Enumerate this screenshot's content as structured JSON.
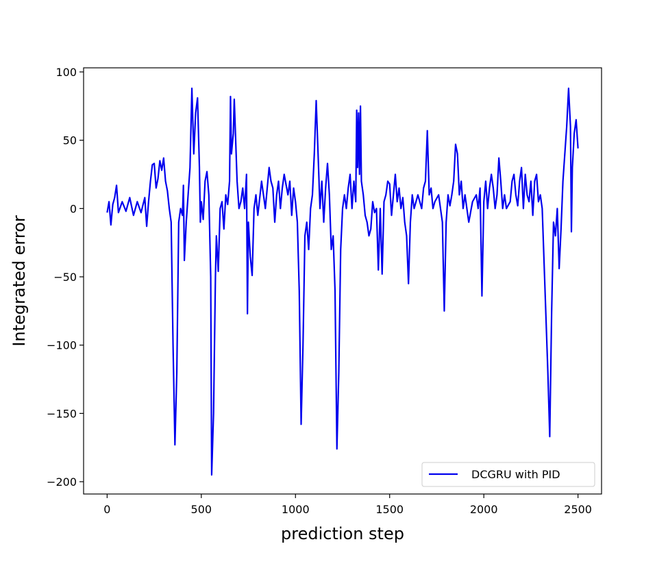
{
  "chart_data": {
    "type": "line",
    "xlabel": "prediction step",
    "ylabel": "Integrated error",
    "x": [
      0,
      10,
      20,
      30,
      40,
      50,
      60,
      80,
      100,
      120,
      140,
      160,
      180,
      200,
      210,
      220,
      230,
      240,
      250,
      260,
      270,
      280,
      290,
      300,
      310,
      320,
      330,
      340,
      350,
      360,
      370,
      380,
      390,
      400,
      405,
      410,
      420,
      440,
      450,
      460,
      470,
      480,
      490,
      495,
      500,
      510,
      520,
      530,
      540,
      550,
      555,
      565,
      575,
      580,
      590,
      600,
      610,
      620,
      630,
      640,
      650,
      655,
      660,
      670,
      675,
      680,
      690,
      700,
      710,
      720,
      730,
      740,
      745,
      750,
      760,
      770,
      780,
      790,
      800,
      820,
      840,
      850,
      860,
      870,
      880,
      890,
      900,
      910,
      920,
      930,
      940,
      960,
      970,
      980,
      990,
      1000,
      1010,
      1020,
      1030,
      1040,
      1050,
      1060,
      1070,
      1080,
      1090,
      1100,
      1110,
      1120,
      1130,
      1140,
      1150,
      1160,
      1170,
      1180,
      1190,
      1200,
      1210,
      1220,
      1230,
      1240,
      1250,
      1260,
      1270,
      1280,
      1290,
      1300,
      1310,
      1320,
      1325,
      1330,
      1335,
      1340,
      1345,
      1350,
      1360,
      1370,
      1380,
      1390,
      1400,
      1410,
      1420,
      1430,
      1440,
      1450,
      1460,
      1470,
      1480,
      1490,
      1500,
      1510,
      1520,
      1530,
      1540,
      1550,
      1560,
      1570,
      1580,
      1590,
      1600,
      1610,
      1620,
      1630,
      1650,
      1670,
      1680,
      1690,
      1700,
      1710,
      1720,
      1730,
      1740,
      1760,
      1770,
      1780,
      1790,
      1800,
      1810,
      1820,
      1830,
      1840,
      1850,
      1860,
      1870,
      1880,
      1890,
      1900,
      1910,
      1920,
      1940,
      1960,
      1970,
      1980,
      1990,
      2000,
      2010,
      2020,
      2030,
      2040,
      2050,
      2060,
      2070,
      2080,
      2090,
      2100,
      2110,
      2120,
      2140,
      2150,
      2160,
      2170,
      2180,
      2190,
      2200,
      2210,
      2220,
      2230,
      2240,
      2250,
      2260,
      2270,
      2280,
      2290,
      2300,
      2310,
      2320,
      2330,
      2340,
      2350,
      2360,
      2370,
      2380,
      2390,
      2400,
      2410,
      2420,
      2430,
      2440,
      2450,
      2460,
      2465,
      2470,
      2480,
      2490,
      2500
    ],
    "series": [
      {
        "name": "DCGRU with PID",
        "color": "#0000ee",
        "values": [
          -3,
          5,
          -12,
          3,
          8,
          17,
          -3,
          5,
          -2,
          8,
          -5,
          5,
          -3,
          8,
          -13,
          5,
          20,
          32,
          33,
          15,
          22,
          35,
          28,
          37,
          20,
          13,
          0,
          -10,
          -100,
          -173,
          -120,
          -10,
          0,
          -5,
          17,
          -38,
          -10,
          30,
          88,
          40,
          70,
          81,
          30,
          -10,
          5,
          -8,
          20,
          27,
          10,
          -50,
          -195,
          -150,
          -50,
          -20,
          -46,
          0,
          5,
          -15,
          10,
          3,
          20,
          82,
          40,
          55,
          80,
          60,
          20,
          0,
          5,
          15,
          0,
          25,
          -77,
          -10,
          -35,
          -49,
          0,
          10,
          -5,
          20,
          0,
          15,
          30,
          20,
          15,
          -10,
          10,
          20,
          0,
          15,
          25,
          10,
          20,
          -5,
          15,
          5,
          -10,
          -60,
          -158,
          -100,
          -20,
          -10,
          -30,
          0,
          10,
          40,
          79,
          40,
          0,
          20,
          -10,
          15,
          33,
          10,
          -30,
          -20,
          -60,
          -176,
          -120,
          -30,
          0,
          10,
          0,
          15,
          25,
          0,
          20,
          5,
          72,
          30,
          70,
          25,
          75,
          20,
          10,
          -5,
          -10,
          -20,
          -15,
          5,
          -3,
          0,
          -45,
          0,
          -48,
          5,
          10,
          20,
          18,
          -5,
          10,
          25,
          5,
          15,
          0,
          8,
          -10,
          -20,
          -55,
          -10,
          10,
          0,
          10,
          0,
          15,
          20,
          57,
          10,
          15,
          0,
          5,
          10,
          0,
          -10,
          -75,
          -10,
          10,
          2,
          10,
          20,
          47,
          40,
          10,
          20,
          0,
          10,
          0,
          -10,
          5,
          10,
          0,
          15,
          -64,
          5,
          20,
          0,
          15,
          25,
          15,
          0,
          10,
          37,
          20,
          0,
          10,
          0,
          5,
          20,
          25,
          10,
          2,
          20,
          30,
          0,
          25,
          10,
          5,
          20,
          -5,
          20,
          25,
          5,
          10,
          0,
          -40,
          -80,
          -120,
          -167,
          -76,
          -10,
          -20,
          0,
          -44,
          -15,
          20,
          40,
          60,
          88,
          60,
          -17,
          30,
          55,
          65,
          44
        ]
      }
    ],
    "xlim": [
      -125,
      2625
    ],
    "xticks": [
      0,
      500,
      1000,
      1500,
      2000,
      2500
    ],
    "ylim": [
      -209,
      103
    ],
    "yticks": [
      {
        "value": -200,
        "label": "−200"
      },
      {
        "value": -150,
        "label": "−150"
      },
      {
        "value": -100,
        "label": "−100"
      },
      {
        "value": -50,
        "label": "−50"
      },
      0,
      50,
      100
    ],
    "legend": "lower right",
    "grid": false
  }
}
